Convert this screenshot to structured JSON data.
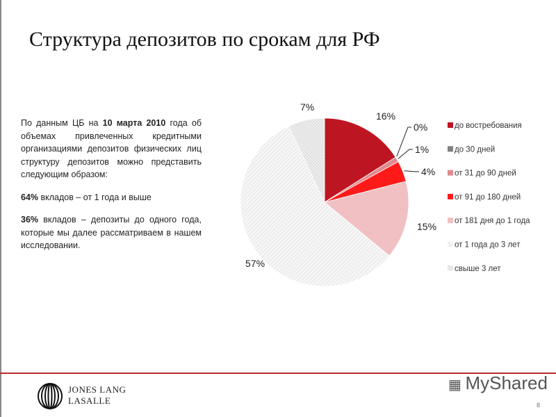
{
  "title": "Структура депозитов по срокам для РФ",
  "text": {
    "p1_pre": "По данным ЦБ на ",
    "p1_bold": "10 марта 2010",
    "p1_post": " года об объемах привлеченных кредитными организациями депозитов физических лиц структуру депозитов можно представить следующим образом:",
    "p2_bold": "64%",
    "p2_post": " вкладов – от 1 года и выше",
    "p3_bold": "36%",
    "p3_post": " вкладов – депозиты до одного года, которые мы далее рассматриваем в нашем исследовании."
  },
  "chart_data": {
    "type": "pie",
    "start": "top, clockwise",
    "legend_position": "right",
    "categories": [
      "до востребования",
      "до 30 дней",
      "от 31 до 90 дней",
      "от 91 до 180 дней",
      "от 181 дня до 1 года",
      "от 1 года до 3 лет",
      "свыше 3 лет"
    ],
    "values": [
      16,
      0,
      1,
      4,
      15,
      57,
      7
    ],
    "labels": [
      "16%",
      "0%",
      "1%",
      "4%",
      "15%",
      "57%",
      "7%"
    ],
    "colors": [
      "#be1522",
      "#808080",
      "#e08a8f",
      "#ff1a1a",
      "#f0c0c3",
      "#f2f2f2",
      "#e4e4e4"
    ]
  },
  "footer": {
    "company_line1": "JONES LANG",
    "company_line2": "LASALLE",
    "watermark": "MyShared",
    "page_number": "8"
  }
}
